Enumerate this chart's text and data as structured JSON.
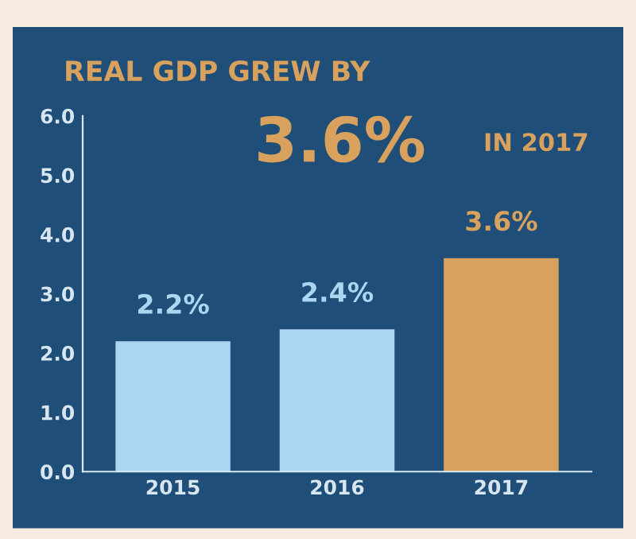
{
  "chart_data": {
    "type": "bar",
    "title": "REAL GDP GREW BY",
    "annotations": [
      "3.6%",
      "IN 2017"
    ],
    "categories": [
      "2015",
      "2016",
      "2017"
    ],
    "values": [
      2.2,
      2.4,
      3.6
    ],
    "colors": [
      "#acd5f2",
      "#acd5f2",
      "#d9a15e"
    ],
    "value_labels": [
      "2.2%",
      "2.4%",
      "3.6%"
    ],
    "ylim": [
      0,
      6
    ],
    "yticks": [
      {
        "value": 0,
        "label": "0.0"
      },
      {
        "value": 1,
        "label": "1.0"
      },
      {
        "value": 2,
        "label": "2.0"
      },
      {
        "value": 3,
        "label": "3.0"
      },
      {
        "value": 4,
        "label": "4.0"
      },
      {
        "value": 5,
        "label": "5.0"
      },
      {
        "value": 6,
        "label": "6.0"
      }
    ],
    "grid": false,
    "legend": false
  }
}
